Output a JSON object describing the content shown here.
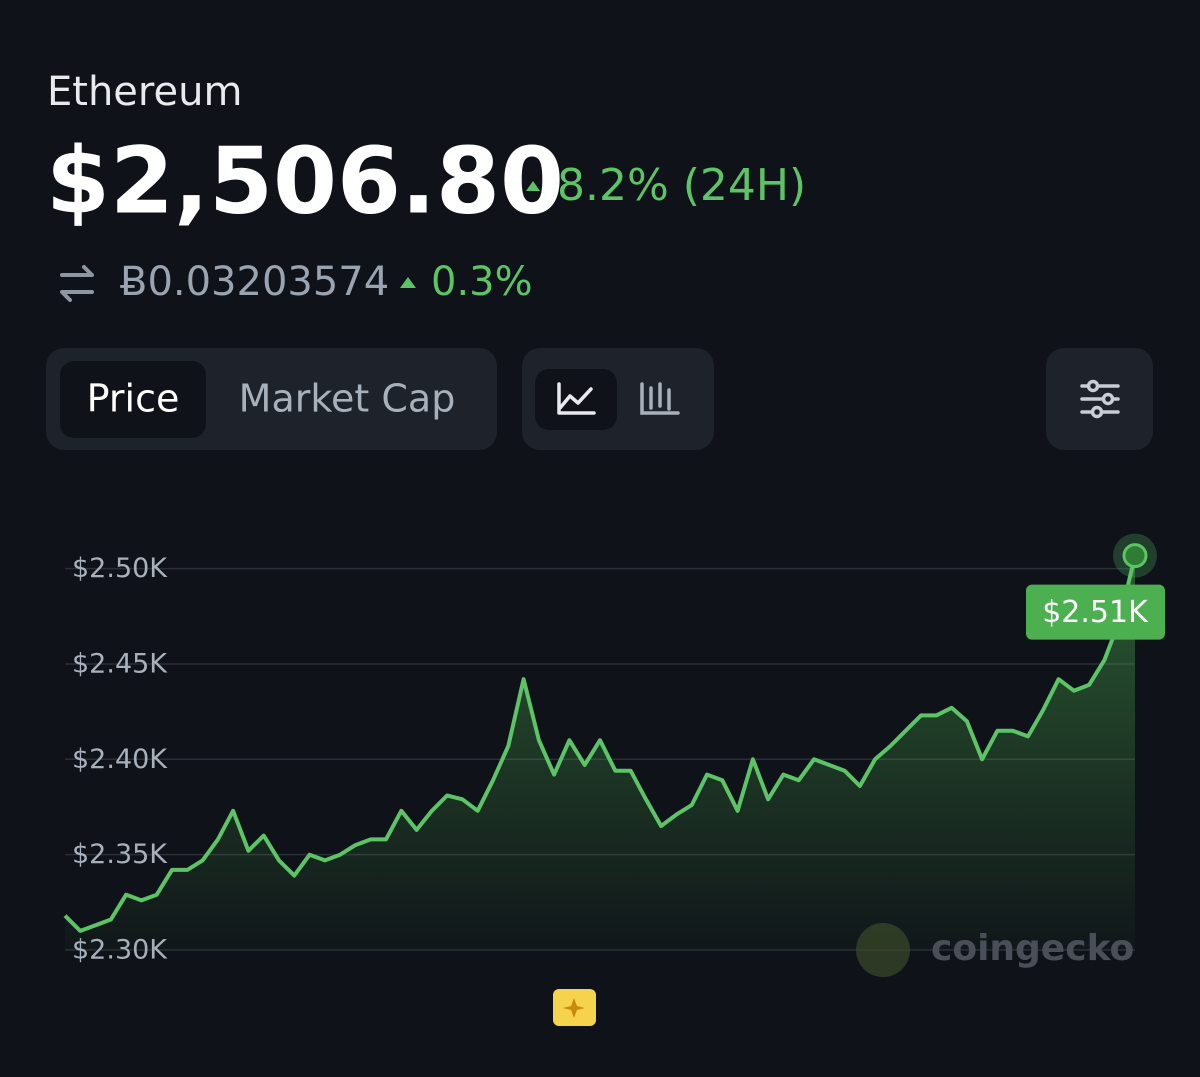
{
  "header": {
    "name": "Ethereum",
    "price": "$2,506.80",
    "change": "8.2% (24H)",
    "btc_price": "Ƀ0.03203574",
    "btc_change": "0.3%"
  },
  "tabs": [
    "Price",
    "Market Cap"
  ],
  "watermark": "coingecko",
  "chart_data": {
    "type": "line",
    "color": "#5cc466",
    "values": [
      2318,
      2310,
      2313,
      2316,
      2329,
      2326,
      2329,
      2342,
      2342,
      2347,
      2358,
      2373,
      2352,
      2360,
      2347,
      2339,
      2350,
      2347,
      2350,
      2355,
      2358,
      2358,
      2373,
      2363,
      2373,
      2381,
      2379,
      2373,
      2389,
      2407,
      2442,
      2410,
      2392,
      2410,
      2397,
      2410,
      2394,
      2394,
      2379,
      2365,
      2371,
      2376,
      2392,
      2389,
      2373,
      2400,
      2379,
      2392,
      2389,
      2400,
      2397,
      2394,
      2386,
      2400,
      2407,
      2415,
      2423,
      2423,
      2427,
      2420,
      2400,
      2415,
      2415,
      2412,
      2426,
      2442,
      2436,
      2439,
      2452,
      2473,
      2506.8
    ],
    "value_labels": [
      null,
      null,
      null,
      null,
      null,
      null,
      null,
      null,
      null,
      null,
      null,
      null,
      null,
      null,
      null,
      null,
      null,
      null,
      null,
      null,
      null,
      null,
      null,
      null,
      null,
      null,
      null,
      null,
      null,
      null,
      null,
      null,
      null,
      null,
      null,
      null,
      null,
      null,
      null,
      null,
      null,
      null,
      null,
      null,
      null,
      null,
      null,
      null,
      null,
      null,
      null,
      null,
      null,
      null,
      null,
      null,
      null,
      null,
      null,
      null,
      null,
      null,
      null,
      null,
      null,
      null,
      null,
      null,
      null,
      null,
      "$2.51K"
    ],
    "ylim": [
      2300,
      2515
    ],
    "yticks": [
      {
        "value": 2300,
        "label": "$2.30K"
      },
      {
        "value": 2350,
        "label": "$2.35K"
      },
      {
        "value": 2400,
        "label": "$2.40K"
      },
      {
        "value": 2450,
        "label": "$2.45K"
      },
      {
        "value": 2500,
        "label": "$2.50K"
      }
    ],
    "grid": true
  }
}
